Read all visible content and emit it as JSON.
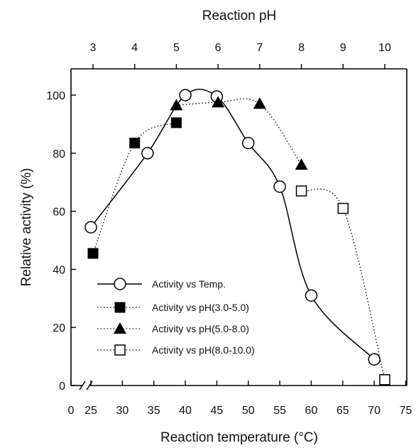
{
  "chart_data": {
    "type": "line",
    "xlabel": "Reaction temperature (°C)",
    "x2label": "Reaction pH",
    "ylabel": "Relative activity (%)",
    "xlim": [
      0,
      75
    ],
    "x2lim": [
      3,
      10
    ],
    "ylim": [
      0,
      100
    ],
    "xticks": [
      0,
      25,
      30,
      35,
      40,
      45,
      50,
      55,
      60,
      65,
      70,
      75
    ],
    "x2ticks": [
      3,
      4,
      5,
      6,
      7,
      8,
      9,
      10
    ],
    "yticks": [
      0,
      20,
      40,
      60,
      80,
      100
    ],
    "axis_break": "x between 0 and 25",
    "legend_position": "lower-left",
    "series": [
      {
        "name": "Activity vs Temp.",
        "axis": "temperature",
        "marker": "circle-open",
        "line": "solid",
        "x": [
          25,
          34,
          40,
          45,
          50,
          55,
          60,
          70
        ],
        "y": [
          54.5,
          80,
          100,
          99.5,
          83.5,
          68.5,
          31,
          9
        ]
      },
      {
        "name": "Activity vs pH(3.0-5.0)",
        "axis": "pH",
        "marker": "square-filled",
        "line": "dotted",
        "x": [
          3.0,
          4.0,
          5.0
        ],
        "y": [
          45.5,
          83.5,
          90.5
        ]
      },
      {
        "name": "Activity vs pH(5.0-8.0)",
        "axis": "pH",
        "marker": "triangle-filled",
        "line": "dotted",
        "x": [
          5.0,
          6.0,
          7.0,
          8.0
        ],
        "y": [
          96.5,
          97.5,
          97,
          76
        ]
      },
      {
        "name": "Activity vs pH(8.0-10.0)",
        "axis": "pH",
        "marker": "square-open",
        "line": "dotted",
        "x": [
          8.0,
          9.0,
          10.0
        ],
        "y": [
          67,
          61,
          2
        ]
      }
    ]
  }
}
